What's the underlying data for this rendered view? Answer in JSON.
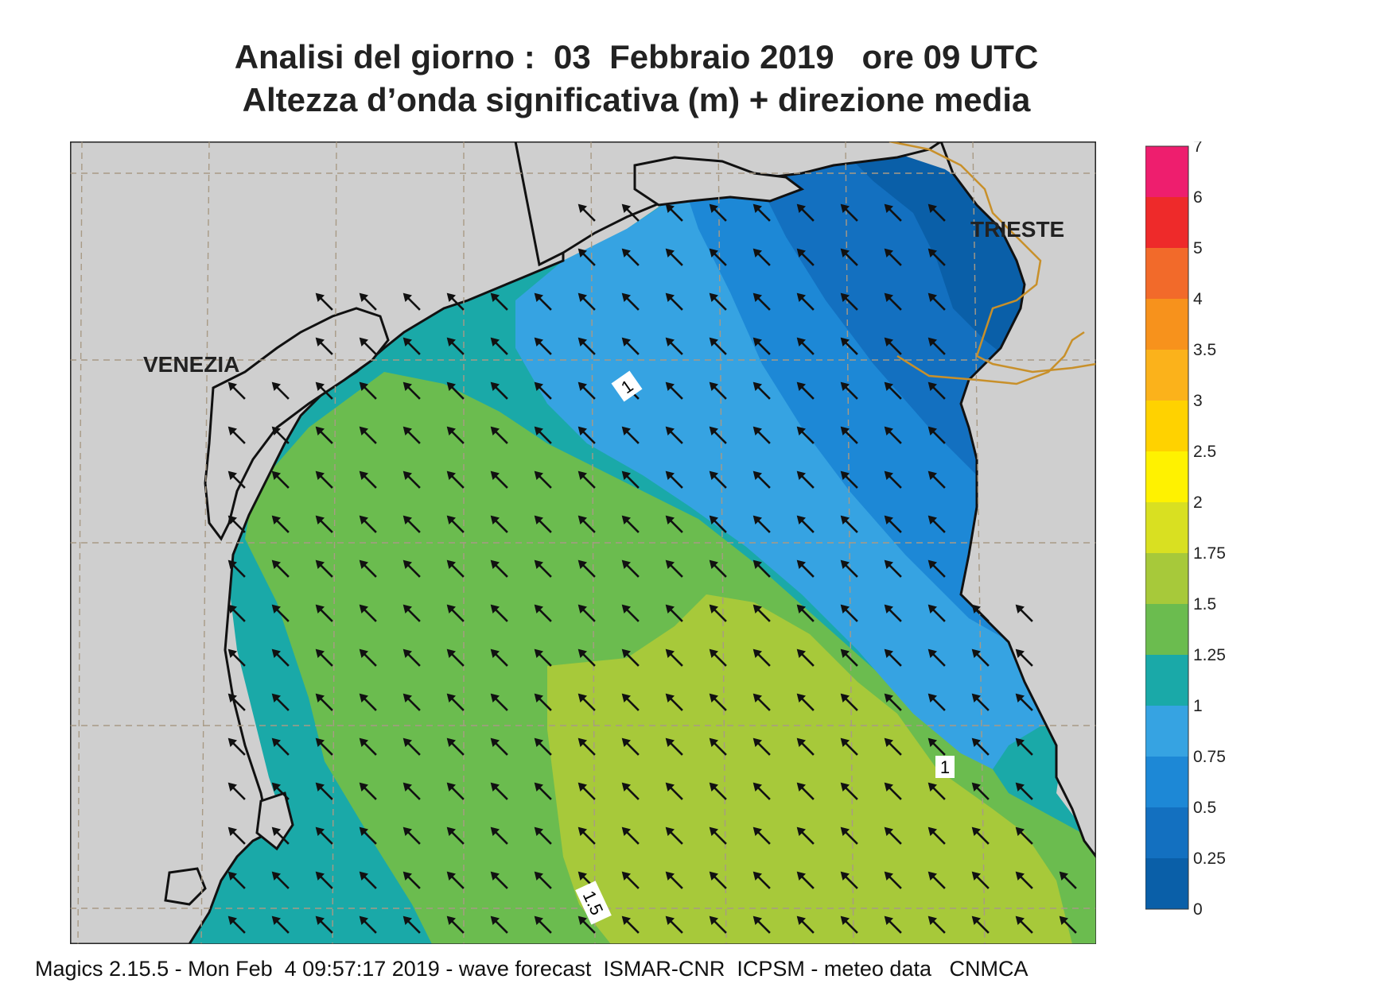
{
  "title": {
    "line1": "Analisi del giorno :  03  Febbraio 2019   ore 09 UTC",
    "line2": "Altezza d’onda significativa (m) + direzione media"
  },
  "map": {
    "cities": [
      "VENEZIA",
      "TRIESTE"
    ],
    "contour_labels": [
      "1",
      "1",
      "1.5"
    ],
    "colors": {
      "land": "#cfcfcf",
      "grid": "#a89a85",
      "border": "#c8902a",
      "coast": "#111111",
      "h_0_025": "#0a5fa8",
      "h_025_05": "#1370c0",
      "h_05_075": "#1d88d6",
      "h_075_1": "#36a3e2",
      "h_1_125": "#1aa9a8",
      "h_125_15": "#6bbc4f",
      "h_15_175": "#a7c93a"
    },
    "arrow_direction": "north-west"
  },
  "legend": {
    "ticks": [
      "7",
      "6",
      "5",
      "4",
      "3.5",
      "3",
      "2.5",
      "2",
      "1.75",
      "1.5",
      "1.25",
      "1",
      "0.75",
      "0.5",
      "0.25",
      "0"
    ],
    "colors": [
      "#ee1e6e",
      "#ee2a2a",
      "#f26a2a",
      "#f7921c",
      "#fbb21b",
      "#ffd200",
      "#fff200",
      "#d9e021",
      "#a7c93a",
      "#6bbc4f",
      "#1aa9a8",
      "#36a3e2",
      "#1d88d6",
      "#1370c0",
      "#0a5fa8"
    ]
  },
  "footer": "Magics 2.15.5 - Mon Feb  4 09:57:17 2019 - wave forecast  ISMAR-CNR  ICPSM - meteo data   CNMCA"
}
